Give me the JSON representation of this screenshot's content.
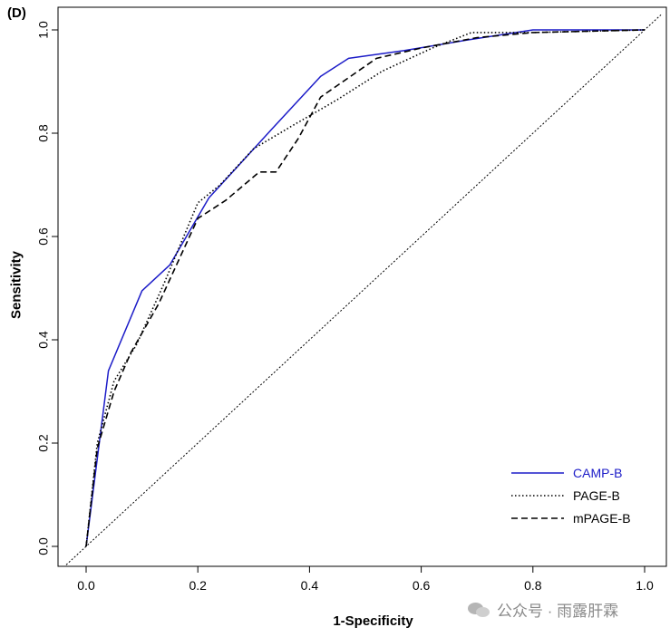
{
  "panel_label": "(D)",
  "watermark": {
    "text": "公众号 · 雨露肝霖",
    "icon": "wechat-icon"
  },
  "chart_data": {
    "type": "line",
    "title": "",
    "xlabel": "1-Specificity",
    "ylabel": "Sensitivity",
    "xlim": [
      0,
      1
    ],
    "ylim": [
      0,
      1
    ],
    "x_ticks": [
      "0.0",
      "0.2",
      "0.4",
      "0.6",
      "0.8",
      "1.0"
    ],
    "y_ticks": [
      "0.0",
      "0.2",
      "0.4",
      "0.6",
      "0.8",
      "1.0"
    ],
    "grid": false,
    "legend_position": "bottom-right",
    "reference_line": {
      "style": "dotted",
      "color": "#000000",
      "x": [
        0,
        1
      ],
      "y": [
        0,
        1
      ]
    },
    "series": [
      {
        "name": "CAMP-B",
        "color": "#1c1cc8",
        "style": "solid",
        "x": [
          0,
          0.04,
          0.1,
          0.15,
          0.22,
          0.33,
          0.42,
          0.47,
          0.57,
          0.68,
          0.8,
          1.0
        ],
        "y": [
          0,
          0.34,
          0.495,
          0.545,
          0.675,
          0.805,
          0.91,
          0.945,
          0.96,
          0.98,
          1.0,
          1.0
        ]
      },
      {
        "name": "PAGE-B",
        "color": "#000000",
        "style": "dotted",
        "x": [
          0,
          0.02,
          0.05,
          0.09,
          0.14,
          0.2,
          0.24,
          0.3,
          0.37,
          0.45,
          0.53,
          0.62,
          0.69,
          0.8,
          1.0
        ],
        "y": [
          0,
          0.2,
          0.32,
          0.39,
          0.51,
          0.665,
          0.7,
          0.77,
          0.815,
          0.865,
          0.92,
          0.965,
          0.995,
          0.995,
          1.0
        ]
      },
      {
        "name": "mPAGE-B",
        "color": "#000000",
        "style": "dashed",
        "x": [
          0,
          0.02,
          0.05,
          0.08,
          0.13,
          0.2,
          0.25,
          0.31,
          0.34,
          0.38,
          0.42,
          0.52,
          0.6,
          0.7,
          0.8,
          1.0
        ],
        "y": [
          0,
          0.19,
          0.3,
          0.375,
          0.47,
          0.635,
          0.67,
          0.725,
          0.725,
          0.79,
          0.87,
          0.945,
          0.965,
          0.985,
          0.995,
          1.0
        ]
      }
    ]
  }
}
